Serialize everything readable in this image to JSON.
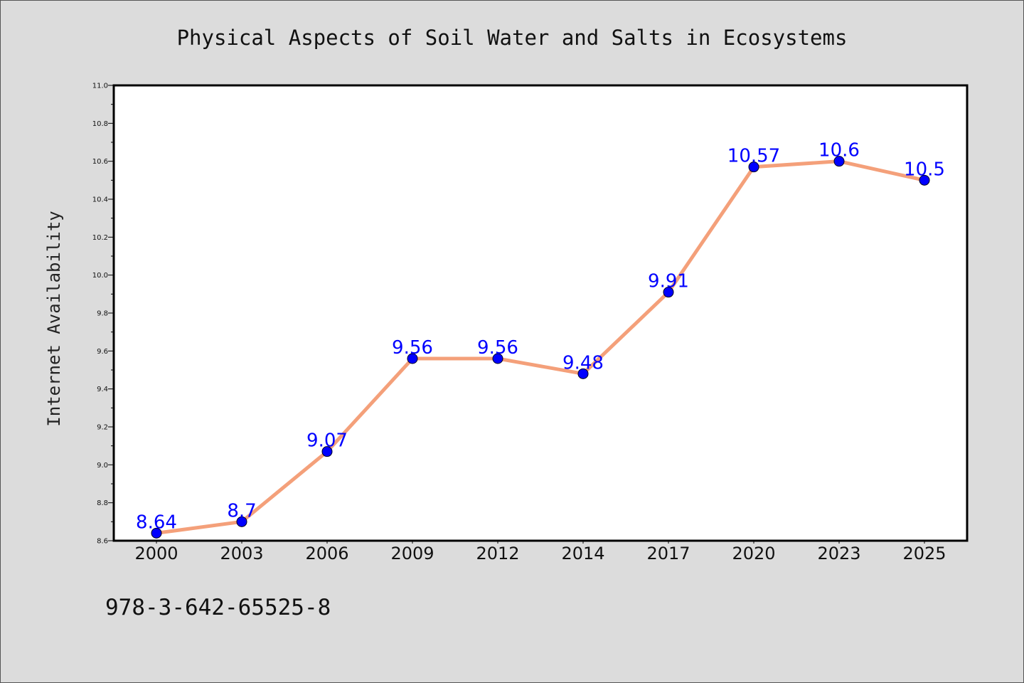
{
  "chart_data": {
    "type": "line",
    "title": "Physical Aspects of Soil Water and Salts in Ecosystems",
    "xlabel": "",
    "ylabel": "Internet Availability",
    "categories": [
      "2000",
      "2003",
      "2006",
      "2009",
      "2012",
      "2014",
      "2017",
      "2020",
      "2023",
      "2025"
    ],
    "series": [
      {
        "values": [
          8.64,
          8.7,
          9.07,
          9.56,
          9.56,
          9.48,
          9.91,
          10.57,
          10.6,
          10.5
        ],
        "labels": [
          "8.64",
          "8.7",
          "9.07",
          "9.56",
          "9.56",
          "9.48",
          "9.91",
          "10.57",
          "10.6",
          "10.5"
        ],
        "line_color": "#f4a07a",
        "marker_color": "#0000ff"
      }
    ],
    "ylim": [
      8.6,
      11.0
    ],
    "yticks": [
      "8.6",
      "8.8",
      "9.0",
      "9.2",
      "9.4",
      "9.6",
      "9.8",
      "10.0",
      "10.2",
      "10.4",
      "10.6",
      "10.8",
      "11.0"
    ],
    "grid": false,
    "legend": false
  },
  "footer": {
    "isbn": "978-3-642-65525-8"
  }
}
